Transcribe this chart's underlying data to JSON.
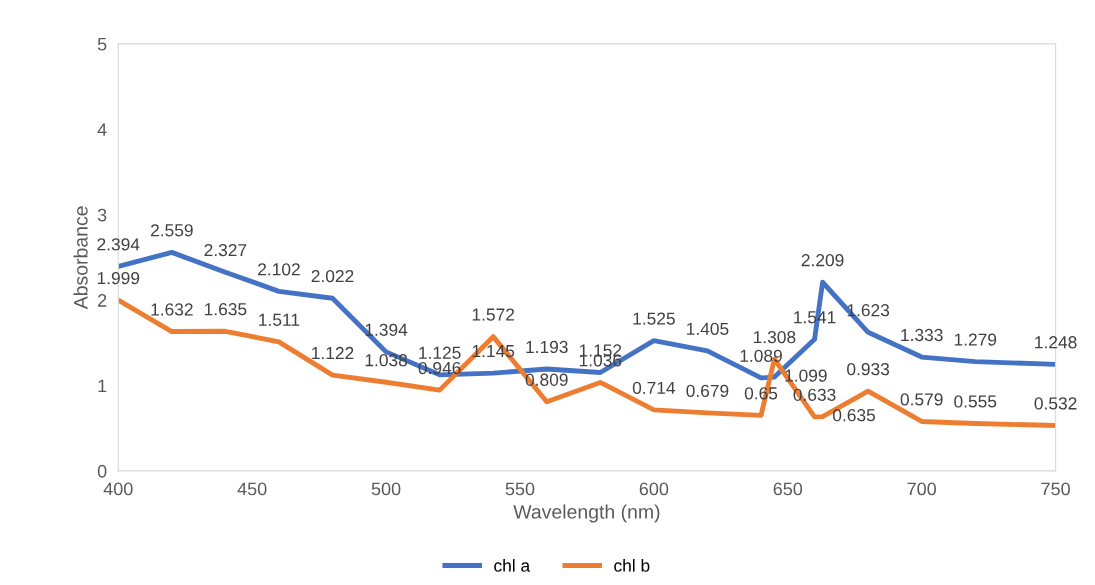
{
  "chart_data": {
    "type": "line",
    "xlabel": "Wavelength (nm)",
    "ylabel": "Absorbance",
    "x": [
      400,
      420,
      440,
      460,
      480,
      500,
      520,
      540,
      560,
      580,
      600,
      620,
      640,
      645,
      660,
      663,
      680,
      700,
      720,
      750
    ],
    "series": [
      {
        "name": "chl a",
        "color": "#4472c4",
        "values": [
          2.394,
          2.559,
          2.327,
          2.102,
          2.022,
          1.394,
          1.125,
          1.145,
          1.193,
          1.152,
          1.525,
          1.405,
          1.089,
          1.099,
          1.541,
          2.209,
          1.623,
          1.333,
          1.279,
          1.248
        ]
      },
      {
        "name": "chl b",
        "color": "#ed7d31",
        "values": [
          1.999,
          1.632,
          1.635,
          1.511,
          1.122,
          1.038,
          0.946,
          1.572,
          0.809,
          1.036,
          0.714,
          0.679,
          0.65,
          1.308,
          0.633,
          0.635,
          0.933,
          0.579,
          0.555,
          0.532
        ]
      }
    ],
    "xlim": [
      400,
      750
    ],
    "xticks": [
      400,
      450,
      500,
      550,
      600,
      650,
      700,
      750
    ],
    "ylim": [
      0,
      5
    ],
    "yticks": [
      0,
      1,
      2,
      3,
      4,
      5
    ],
    "data_labels": true,
    "grid": false,
    "legend": "bottom",
    "marker": "none",
    "line_style": "solid"
  }
}
